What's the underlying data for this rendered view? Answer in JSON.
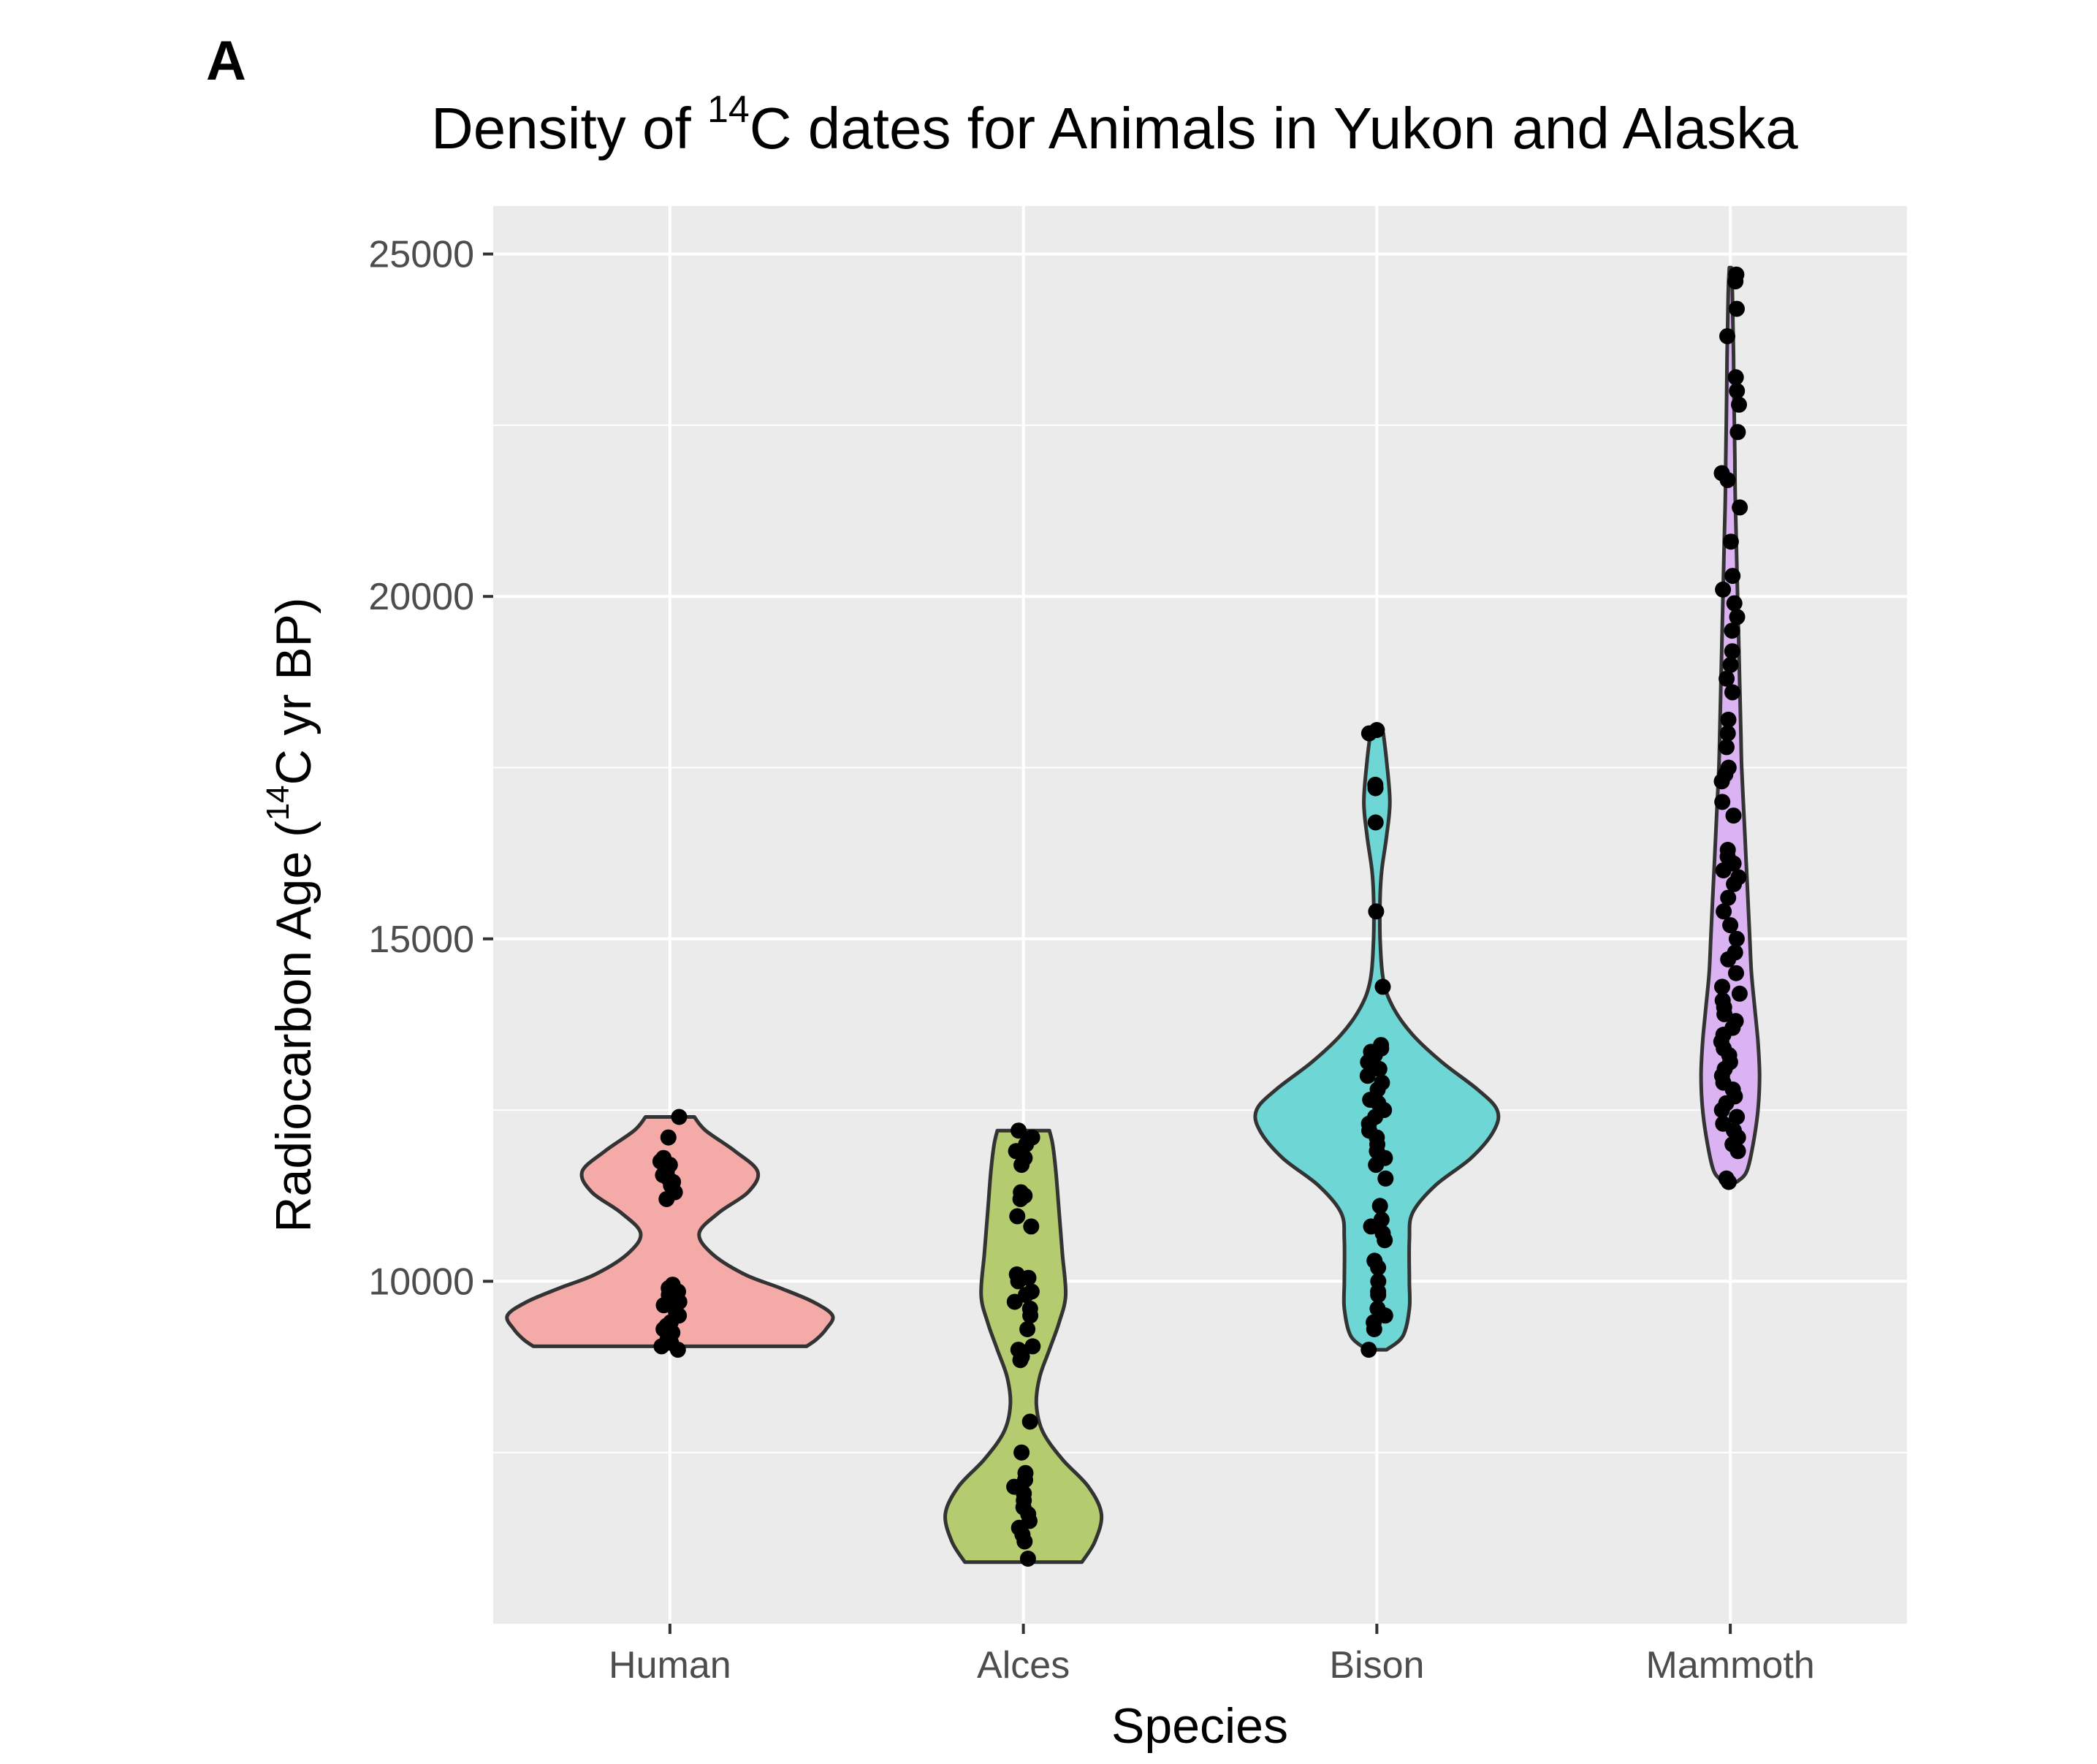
{
  "panel_label": "A",
  "chart_data": {
    "type": "violin",
    "title": {
      "prefix": "Density of ",
      "superscript": "14",
      "suffix": "C dates for Animals in Yukon and Alaska"
    },
    "xlabel": "Species",
    "ylabel": {
      "prefix": "Radiocarbon Age (",
      "superscript": "14",
      "suffix": "C yr BP)"
    },
    "ylim": [
      5000,
      25700
    ],
    "yticks": [
      10000,
      15000,
      20000,
      25000
    ],
    "ytick_labels": [
      "10000",
      "15000",
      "20000",
      "25000"
    ],
    "y_minor_gridlines": [
      7500,
      12500,
      17500,
      22500
    ],
    "grid": true,
    "categories": [
      "Human",
      "Alces",
      "Bison",
      "Mammoth"
    ],
    "series": [
      {
        "category": "Human",
        "fill": "#f4aaa7",
        "density_profile": [
          [
            9050,
            0.84
          ],
          [
            9150,
            0.9
          ],
          [
            9300,
            0.96
          ],
          [
            9500,
            1.0
          ],
          [
            9700,
            0.88
          ],
          [
            9900,
            0.68
          ],
          [
            10100,
            0.46
          ],
          [
            10400,
            0.26
          ],
          [
            10700,
            0.18
          ],
          [
            11000,
            0.3
          ],
          [
            11300,
            0.48
          ],
          [
            11600,
            0.54
          ],
          [
            11900,
            0.4
          ],
          [
            12200,
            0.22
          ],
          [
            12400,
            0.15
          ]
        ],
        "points": [
          9000,
          9050,
          9100,
          9150,
          9200,
          9250,
          9300,
          9350,
          9400,
          9500,
          9550,
          9650,
          9700,
          9750,
          9800,
          9850,
          9900,
          9950,
          11200,
          11300,
          11400,
          11450,
          11500,
          11550,
          11600,
          11700,
          11750,
          11800,
          12100,
          12400
        ]
      },
      {
        "category": "Alces",
        "fill": "#b4cc6f",
        "density_profile": [
          [
            5900,
            0.36
          ],
          [
            6200,
            0.44
          ],
          [
            6600,
            0.48
          ],
          [
            7000,
            0.4
          ],
          [
            7400,
            0.24
          ],
          [
            7800,
            0.12
          ],
          [
            8200,
            0.08
          ],
          [
            8600,
            0.1
          ],
          [
            9000,
            0.16
          ],
          [
            9400,
            0.22
          ],
          [
            9800,
            0.26
          ],
          [
            10400,
            0.24
          ],
          [
            11000,
            0.22
          ],
          [
            11600,
            0.2
          ],
          [
            12000,
            0.18
          ],
          [
            12200,
            0.16
          ]
        ],
        "points": [
          5950,
          6200,
          6300,
          6400,
          6500,
          6600,
          6700,
          6800,
          6900,
          7000,
          7100,
          7200,
          7500,
          7950,
          8850,
          8900,
          9000,
          9050,
          9300,
          9500,
          9600,
          9700,
          9800,
          9850,
          10000,
          10050,
          10100,
          10800,
          10950,
          11200,
          11250,
          11300,
          11700,
          11800,
          11900,
          12000,
          12100,
          12200
        ]
      },
      {
        "category": "Bison",
        "fill": "#6fd6d6",
        "density_profile": [
          [
            9000,
            0.06
          ],
          [
            9200,
            0.16
          ],
          [
            9600,
            0.2
          ],
          [
            10000,
            0.2
          ],
          [
            10600,
            0.2
          ],
          [
            11000,
            0.22
          ],
          [
            11400,
            0.36
          ],
          [
            11800,
            0.58
          ],
          [
            12200,
            0.72
          ],
          [
            12500,
            0.74
          ],
          [
            12800,
            0.62
          ],
          [
            13200,
            0.4
          ],
          [
            13600,
            0.22
          ],
          [
            14000,
            0.1
          ],
          [
            14400,
            0.04
          ],
          [
            15000,
            0.02
          ],
          [
            15600,
            0.02
          ],
          [
            16000,
            0.03
          ],
          [
            16500,
            0.06
          ],
          [
            17000,
            0.08
          ],
          [
            17600,
            0.06
          ],
          [
            18000,
            0.04
          ]
        ],
        "points": [
          9000,
          9300,
          9400,
          9500,
          9600,
          9800,
          9850,
          10000,
          10200,
          10300,
          10600,
          10700,
          10800,
          10900,
          11100,
          11500,
          11700,
          11800,
          11900,
          12000,
          12100,
          12200,
          12300,
          12400,
          12500,
          12600,
          12650,
          12800,
          12900,
          13000,
          13100,
          13200,
          13300,
          13350,
          13400,
          13450,
          14300,
          15400,
          16700,
          17200,
          17250,
          18000,
          18050
        ]
      },
      {
        "category": "Mammoth",
        "fill": "#dcb3f2",
        "density_profile": [
          [
            11450,
            0.04
          ],
          [
            11600,
            0.1
          ],
          [
            12000,
            0.14
          ],
          [
            12500,
            0.17
          ],
          [
            13000,
            0.18
          ],
          [
            13500,
            0.17
          ],
          [
            14000,
            0.15
          ],
          [
            14500,
            0.13
          ],
          [
            15000,
            0.12
          ],
          [
            15500,
            0.11
          ],
          [
            16000,
            0.1
          ],
          [
            16500,
            0.09
          ],
          [
            17000,
            0.08
          ],
          [
            17500,
            0.07
          ],
          [
            18000,
            0.065
          ],
          [
            18500,
            0.06
          ],
          [
            19000,
            0.055
          ],
          [
            19500,
            0.05
          ],
          [
            20000,
            0.045
          ],
          [
            20500,
            0.04
          ],
          [
            21000,
            0.035
          ],
          [
            21500,
            0.03
          ],
          [
            22000,
            0.028
          ],
          [
            22500,
            0.025
          ],
          [
            23000,
            0.022
          ],
          [
            23500,
            0.02
          ],
          [
            24000,
            0.016
          ],
          [
            24500,
            0.012
          ],
          [
            24800,
            0.006
          ]
        ],
        "points": [
          11450,
          11500,
          11900,
          12000,
          12100,
          12200,
          12300,
          12400,
          12500,
          12600,
          12700,
          12800,
          12900,
          13000,
          13100,
          13200,
          13300,
          13400,
          13500,
          13600,
          13700,
          13800,
          13900,
          14000,
          14100,
          14200,
          14300,
          14500,
          14700,
          14800,
          15000,
          15200,
          15400,
          15600,
          15800,
          15900,
          16000,
          16100,
          16200,
          16300,
          16800,
          17000,
          17300,
          17400,
          17500,
          17800,
          18000,
          18200,
          18600,
          18800,
          19000,
          19200,
          19500,
          19700,
          19900,
          20100,
          20300,
          20800,
          21300,
          21700,
          21800,
          22400,
          22800,
          23000,
          23200,
          23800,
          24200,
          24600,
          24700
        ]
      }
    ]
  }
}
